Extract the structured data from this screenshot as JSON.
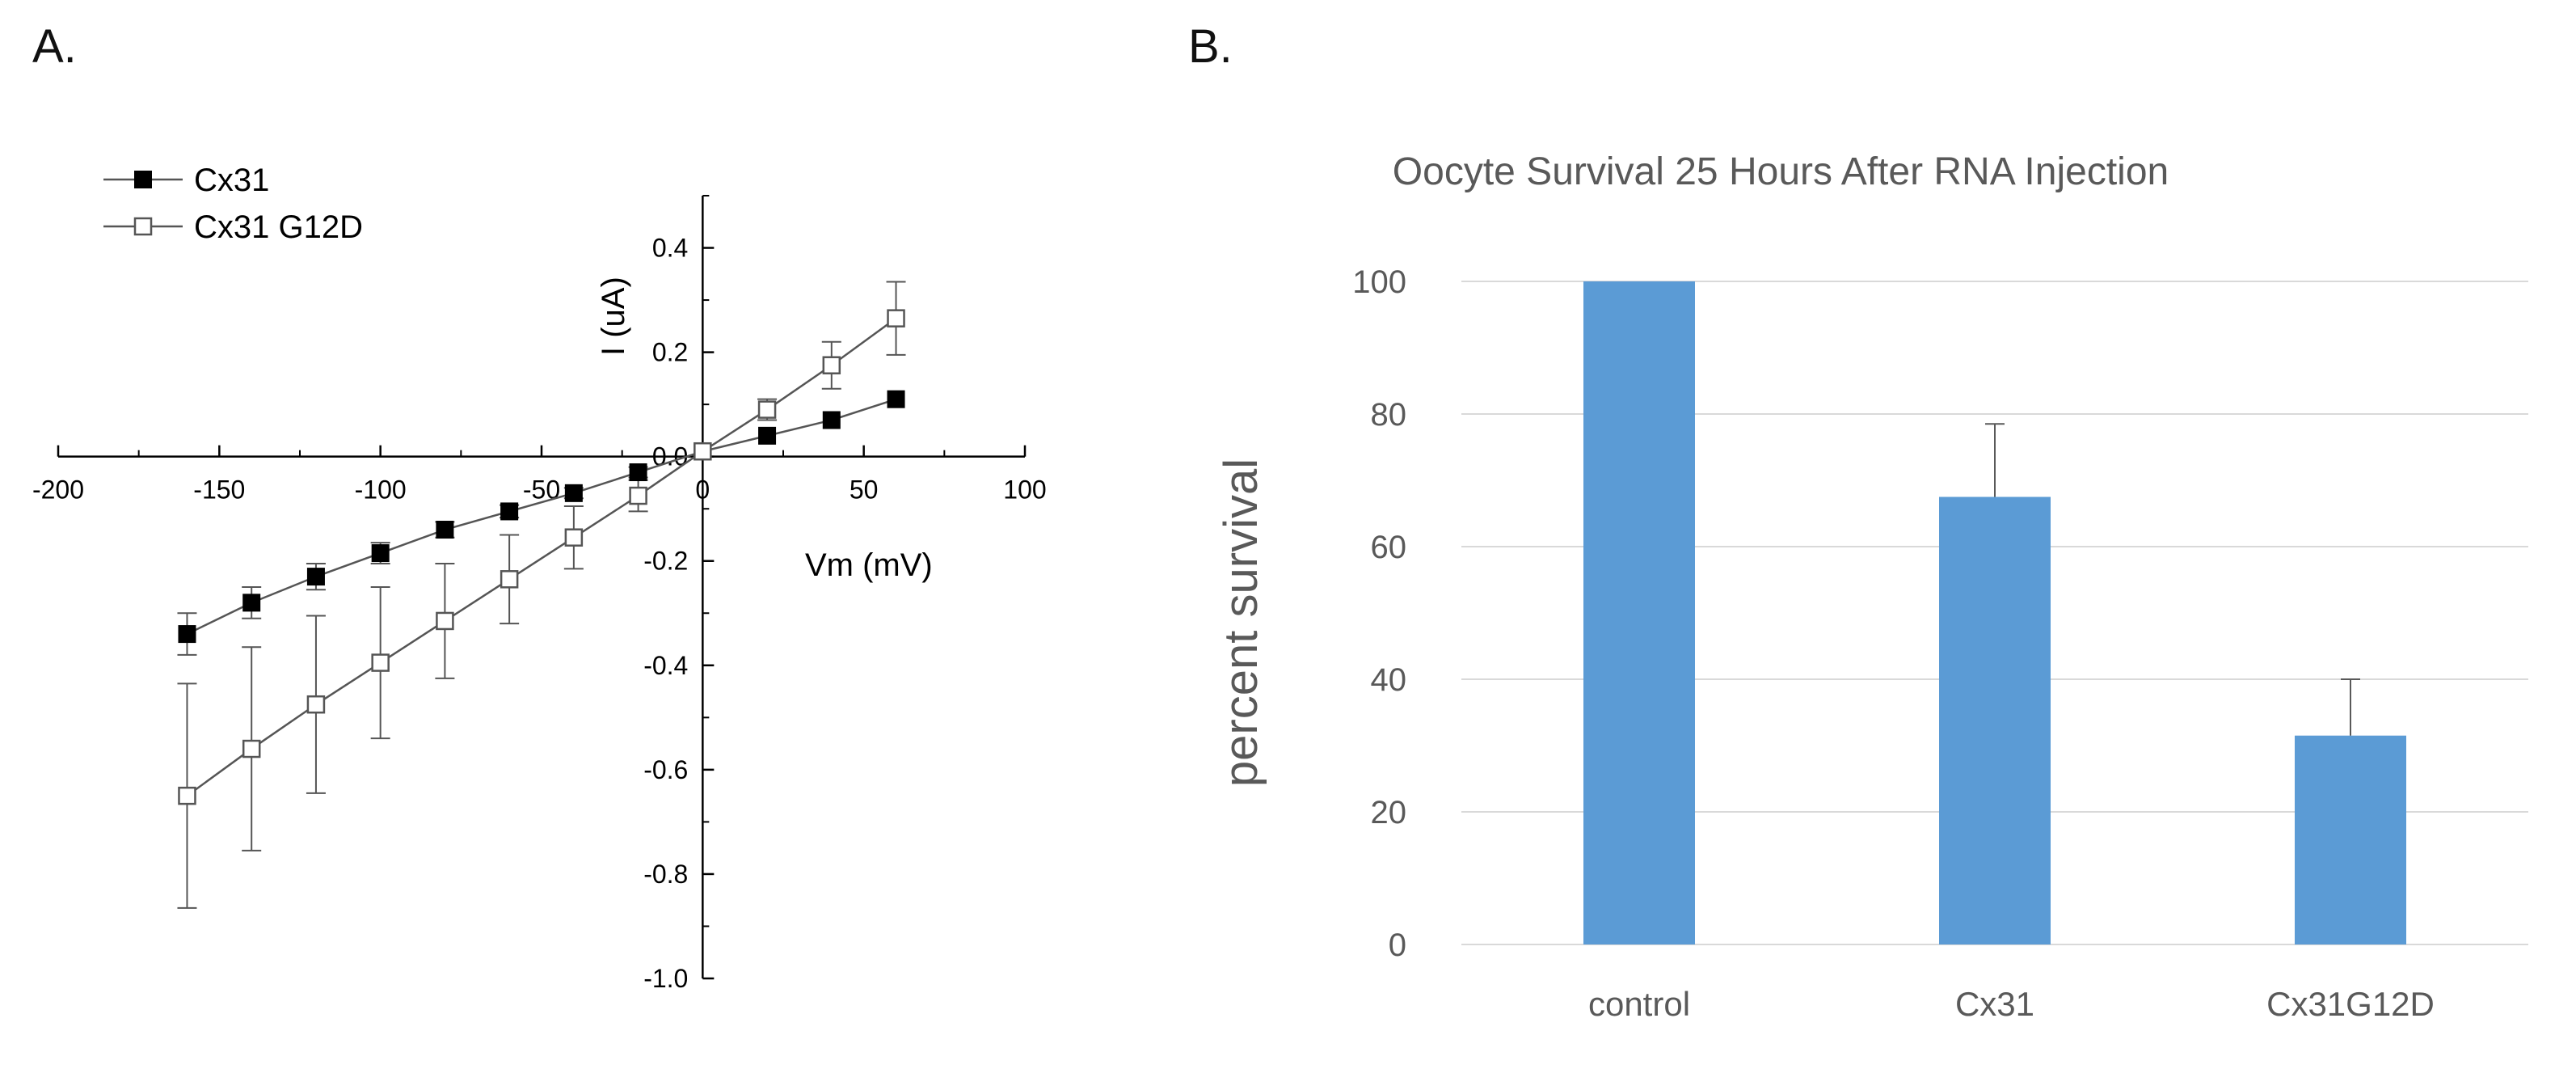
{
  "panels": {
    "a_label": "A.",
    "b_label": "B."
  },
  "chart_data": [
    {
      "type": "line",
      "title": "",
      "xlabel": "Vm (mV)",
      "ylabel": "I (uA)",
      "xlim": [
        -200,
        100
      ],
      "ylim": [
        -1.0,
        0.5
      ],
      "x_ticks": [
        -200,
        -150,
        -100,
        -50,
        0,
        50,
        100
      ],
      "x_tick_labels": [
        "-200",
        "-150",
        "-100",
        "-50",
        "0",
        "50",
        "100"
      ],
      "y_ticks": [
        -1.0,
        -0.8,
        -0.6,
        -0.4,
        -0.2,
        0.0,
        0.2,
        0.4
      ],
      "y_tick_labels": [
        "-1.0",
        "-0.8",
        "-0.6",
        "-0.4",
        "-0.2",
        "0.0",
        "0.2",
        "0.4"
      ],
      "legend_position": "top-left",
      "series": [
        {
          "name": "Cx31",
          "marker": "filled-square",
          "x": [
            -160,
            -140,
            -120,
            -100,
            -80,
            -60,
            -40,
            -20,
            0,
            20,
            40,
            60
          ],
          "y": [
            -0.34,
            -0.28,
            -0.23,
            -0.185,
            -0.14,
            -0.105,
            -0.07,
            -0.03,
            0.01,
            0.04,
            0.07,
            0.11
          ],
          "error": [
            0.04,
            0.03,
            0.025,
            0.02,
            0.015,
            0.012,
            0.01,
            0.01,
            0.0,
            0.0,
            0.0,
            0.0
          ]
        },
        {
          "name": "Cx31 G12D",
          "marker": "open-square",
          "x": [
            -160,
            -140,
            -120,
            -100,
            -80,
            -60,
            -40,
            -20,
            0,
            20,
            40,
            60
          ],
          "y": [
            -0.65,
            -0.56,
            -0.475,
            -0.395,
            -0.315,
            -0.235,
            -0.155,
            -0.075,
            0.01,
            0.09,
            0.175,
            0.265
          ],
          "error": [
            0.215,
            0.195,
            0.17,
            0.145,
            0.11,
            0.085,
            0.06,
            0.03,
            0.0,
            0.02,
            0.045,
            0.07
          ]
        }
      ]
    },
    {
      "type": "bar",
      "title": "Oocyte Survival 25 Hours After RNA Injection",
      "xlabel": "",
      "ylabel": "percent survival",
      "ylim": [
        0,
        100
      ],
      "y_ticks": [
        0,
        20,
        40,
        60,
        80,
        100
      ],
      "y_tick_labels": [
        "0",
        "20",
        "40",
        "60",
        "80",
        "100"
      ],
      "grid": true,
      "categories": [
        "control",
        "Cx31",
        "Cx31G12D"
      ],
      "values": [
        100,
        67.5,
        31.5
      ],
      "error": [
        0,
        11,
        8.5
      ],
      "bar_color": "#5b9bd5"
    }
  ]
}
